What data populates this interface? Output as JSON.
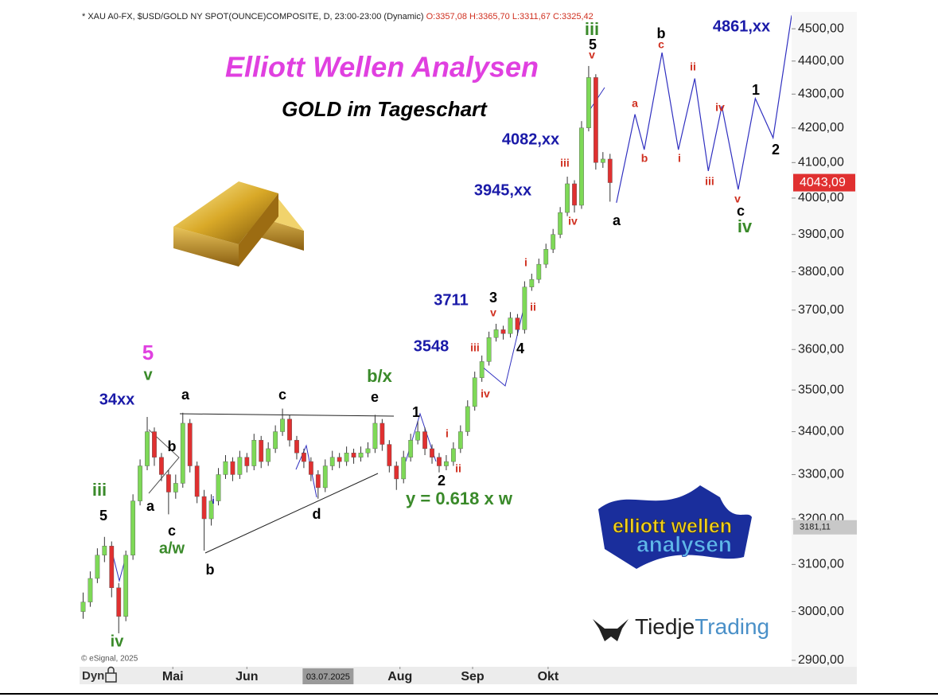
{
  "chart_data": {
    "type": "candlestick",
    "header": "* XAU A0-FX, $USD/GOLD NY SPOT(OUNCE)COMPOSITE, D, 23:00-23:00 (Dynamic)",
    "ohlc_text": "O:3357,08 H:3365,70 L:3311,67 C:3325,42",
    "title": "Elliott Wellen Analysen",
    "subtitle": "GOLD im Tageschart",
    "copyright": "© eSignal, 2025",
    "dyn": "Dyn",
    "logo_top": "elliott wellen",
    "logo_bottom": "analysen",
    "brand_a": "Tiedje",
    "brand_b": "Trading",
    "log_scale": true,
    "up_color": "#7ed957",
    "down_color": "#e03030",
    "open": [
      3000,
      3020,
      3070,
      3120,
      3140,
      3050,
      2990,
      3120,
      3240,
      3320,
      3400,
      3340,
      3300,
      3260,
      3280,
      3420,
      3320,
      3250,
      3200,
      3240,
      3300,
      3330,
      3300,
      3340,
      3320,
      3380,
      3330,
      3360,
      3400,
      3430,
      3380,
      3350,
      3330,
      3300,
      3270,
      3320,
      3340,
      3330,
      3350,
      3340,
      3350,
      3360,
      3420,
      3370,
      3320,
      3290,
      3340,
      3380,
      3400,
      3360,
      3340,
      3320,
      3330,
      3360,
      3400,
      3460,
      3530,
      3570,
      3630,
      3650,
      3640,
      3680,
      3650,
      3760,
      3780,
      3820,
      3860,
      3900,
      3960,
      4040,
      3980,
      4200,
      4350,
      4100,
      4110
    ],
    "high": [
      3040,
      3085,
      3135,
      3160,
      3150,
      3060,
      3130,
      3255,
      3335,
      3435,
      3410,
      3350,
      3310,
      3300,
      3445,
      3430,
      3330,
      3265,
      3255,
      3315,
      3345,
      3340,
      3355,
      3350,
      3395,
      3390,
      3375,
      3415,
      3455,
      3440,
      3390,
      3360,
      3340,
      3310,
      3335,
      3355,
      3350,
      3365,
      3360,
      3365,
      3375,
      3440,
      3430,
      3380,
      3330,
      3355,
      3395,
      3425,
      3410,
      3370,
      3350,
      3345,
      3375,
      3415,
      3475,
      3545,
      3585,
      3645,
      3665,
      3660,
      3695,
      3690,
      3775,
      3795,
      3835,
      3875,
      3915,
      3975,
      4060,
      4050,
      4220,
      4385,
      4360,
      4130,
      4125
    ],
    "low": [
      2985,
      3010,
      3060,
      3105,
      3030,
      2955,
      2980,
      3110,
      3230,
      3310,
      3320,
      3285,
      3210,
      3245,
      3270,
      3305,
      3235,
      3130,
      3185,
      3230,
      3290,
      3285,
      3290,
      3305,
      3310,
      3315,
      3320,
      3350,
      3390,
      3365,
      3335,
      3315,
      3285,
      3245,
      3260,
      3310,
      3315,
      3320,
      3325,
      3330,
      3340,
      3350,
      3355,
      3305,
      3265,
      3280,
      3330,
      3370,
      3345,
      3325,
      3305,
      3310,
      3320,
      3350,
      3390,
      3450,
      3520,
      3560,
      3620,
      3625,
      3630,
      3635,
      3640,
      3750,
      3770,
      3810,
      3850,
      3890,
      3950,
      3960,
      3970,
      4190,
      4080,
      4085,
      3990
    ],
    "close": [
      3020,
      3070,
      3120,
      3140,
      3050,
      2990,
      3120,
      3240,
      3320,
      3400,
      3340,
      3300,
      3260,
      3280,
      3420,
      3320,
      3250,
      3200,
      3240,
      3300,
      3330,
      3300,
      3340,
      3320,
      3380,
      3330,
      3360,
      3400,
      3430,
      3380,
      3350,
      3330,
      3300,
      3270,
      3320,
      3340,
      3330,
      3350,
      3340,
      3350,
      3360,
      3420,
      3370,
      3320,
      3290,
      3340,
      3380,
      3400,
      3360,
      3340,
      3320,
      3330,
      3360,
      3400,
      3460,
      3530,
      3570,
      3630,
      3650,
      3640,
      3680,
      3650,
      3760,
      3780,
      3820,
      3860,
      3900,
      3960,
      4040,
      3980,
      4200,
      4350,
      4100,
      4110,
      4043.09
    ],
    "last_price": {
      "value": 4043.09,
      "label": "4043,09"
    },
    "crosshair": {
      "x": {
        "value": 34.9,
        "label": "03.07.2025"
      },
      "y": {
        "value": 3181.11,
        "label": "3181,11"
      }
    },
    "forecast": {
      "color": "#3030c0",
      "x": [
        75.4,
        78.0,
        79.3,
        81.8,
        84.1,
        86.4,
        88.3,
        90.2,
        92.5,
        94.9,
        97.4,
        100
      ],
      "values": [
        3987,
        4240,
        4137,
        4426,
        4137,
        4347,
        4076,
        4264,
        4024,
        4287,
        4171,
        4542
      ]
    },
    "xlim": [
      0,
      100
    ],
    "xticks": [
      {
        "value": 13.1,
        "label": "Mai"
      },
      {
        "value": 23.5,
        "label": "Jun"
      },
      {
        "value": 45,
        "label": "Aug"
      },
      {
        "value": 55.2,
        "label": "Sep"
      },
      {
        "value": 65.8,
        "label": "Okt"
      }
    ],
    "ylim": [
      2887,
      4553
    ],
    "yticks": [
      {
        "value": 2900,
        "label": "2900,00"
      },
      {
        "value": 3000,
        "label": "3000,00"
      },
      {
        "value": 3100,
        "label": "3100,00"
      },
      {
        "value": 3200,
        "label": "3200,00"
      },
      {
        "value": 3300,
        "label": "3300,00"
      },
      {
        "value": 3400,
        "label": "3400,00"
      },
      {
        "value": 3500,
        "label": "3500,00"
      },
      {
        "value": 3600,
        "label": "3600,00"
      },
      {
        "value": 3700,
        "label": "3700,00"
      },
      {
        "value": 3800,
        "label": "3800,00"
      },
      {
        "value": 3900,
        "label": "3900,00"
      },
      {
        "value": 4000,
        "label": "4000,00"
      },
      {
        "value": 4100,
        "label": "4100,00"
      },
      {
        "value": 4200,
        "label": "4200,00"
      },
      {
        "value": 4300,
        "label": "4300,00"
      },
      {
        "value": 4400,
        "label": "4400,00"
      },
      {
        "value": 4500,
        "label": "4500,00"
      }
    ],
    "annotations": [
      "34xx",
      "5",
      "v",
      "iii",
      "5",
      "iv",
      "a",
      "b",
      "a",
      "c",
      "a/w",
      "b",
      "i",
      "c",
      "d",
      "b/x",
      "e",
      "1",
      "2",
      "y = 0.618 x w",
      "3548",
      "3711",
      "3",
      "v",
      "iii",
      "4",
      "iv",
      "i",
      "ii",
      "i",
      "ii",
      "3945,xx",
      "4082,xx",
      "iii",
      "iv",
      "iii",
      "5",
      "v",
      "a",
      "b",
      "c",
      "a",
      "b",
      "ii",
      "i",
      "iv",
      "iii",
      "v",
      "c",
      "iv",
      "1",
      "2",
      "4861,xx"
    ]
  }
}
